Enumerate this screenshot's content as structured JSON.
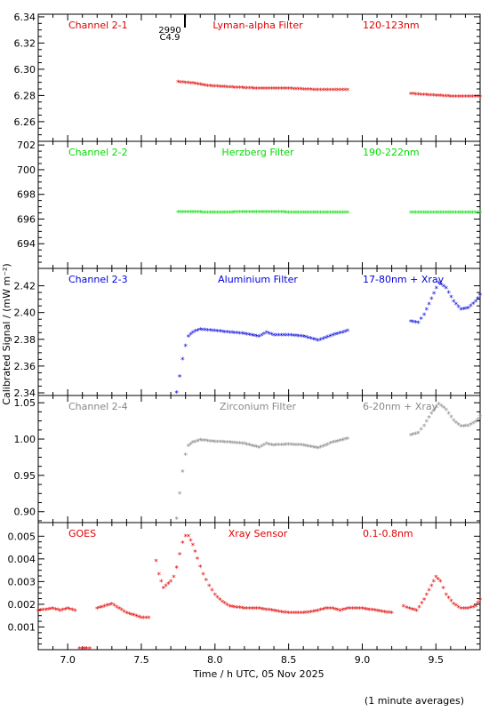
{
  "chart_data": {
    "type": "scatter",
    "xlabel": "Time / h UTC, 05 Nov 2025",
    "ylabel": "Calibrated Signal / (mW m⁻²)",
    "footnote": "(1 minute averages)",
    "marker": {
      "time": 7.82,
      "line1": "2990",
      "line2": "C4.9"
    },
    "xlim": [
      6.8,
      9.8
    ],
    "xticks": [
      7.0,
      7.5,
      8.0,
      8.5,
      9.0,
      9.5
    ],
    "xticklabels": [
      "7.0",
      "7.5",
      "8.0",
      "8.5",
      "9.0",
      "9.5"
    ],
    "panels": [
      {
        "channel": "Channel 2-1",
        "filter": "Lyman-alpha Filter",
        "band": "120-123nm",
        "color": "#e00000",
        "ylim": [
          6.245,
          6.342
        ],
        "yticks": [
          6.26,
          6.28,
          6.3,
          6.32,
          6.34
        ],
        "yticklabels": [
          "6.26",
          "6.28",
          "6.30",
          "6.32",
          "6.34"
        ],
        "segments": [
          {
            "x": [
              7.75,
              7.85,
              7.95,
              8.1,
              8.3,
              8.5,
              8.7,
              8.9
            ],
            "y": [
              6.29,
              6.289,
              6.287,
              6.286,
              6.285,
              6.285,
              6.284,
              6.284
            ]
          },
          {
            "x": [
              9.33,
              9.45,
              9.6,
              9.8
            ],
            "y": [
              6.281,
              6.28,
              6.279,
              6.279
            ]
          }
        ]
      },
      {
        "channel": "Channel 2-2",
        "filter": "Herzberg Filter",
        "band": "190-222nm",
        "color": "#00dd00",
        "ylim": [
          692.0,
          702.3
        ],
        "yticks": [
          694,
          696,
          698,
          700,
          702
        ],
        "yticklabels": [
          "694",
          "696",
          "698",
          "700",
          "702"
        ],
        "segments": [
          {
            "x": [
              7.75,
              8.0,
              8.3,
              8.6,
              8.9
            ],
            "y": [
              696.55,
              696.5,
              696.55,
              696.5,
              696.5
            ]
          },
          {
            "x": [
              9.33,
              9.55,
              9.8
            ],
            "y": [
              696.5,
              696.5,
              696.5
            ]
          }
        ]
      },
      {
        "channel": "Channel 2-3",
        "filter": "Aluminium Filter",
        "band": "17-80nm + Xray",
        "color": "#0000dd",
        "ylim": [
          2.338,
          2.433
        ],
        "yticks": [
          2.34,
          2.36,
          2.38,
          2.4,
          2.42
        ],
        "yticklabels": [
          "2.34",
          "2.36",
          "2.38",
          "2.40",
          "2.42"
        ],
        "segments": [
          {
            "x": [
              7.74,
              7.76,
              7.78,
              7.8,
              7.82,
              7.85,
              7.9,
              8.0,
              8.1,
              8.2,
              8.3,
              8.35,
              8.4,
              8.5,
              8.6,
              8.7,
              8.8,
              8.9
            ],
            "y": [
              2.34,
              2.352,
              2.365,
              2.375,
              2.382,
              2.385,
              2.387,
              2.386,
              2.385,
              2.384,
              2.382,
              2.385,
              2.383,
              2.383,
              2.382,
              2.379,
              2.383,
              2.386
            ]
          },
          {
            "x": [
              9.33,
              9.38,
              9.42,
              9.47,
              9.52,
              9.57,
              9.62,
              9.67,
              9.72,
              9.77,
              9.8
            ],
            "y": [
              2.393,
              2.392,
              2.398,
              2.41,
              2.422,
              2.418,
              2.408,
              2.402,
              2.403,
              2.408,
              2.413
            ]
          }
        ]
      },
      {
        "channel": "Channel 2-4",
        "filter": "Zirconium Filter",
        "band": "6-20nm + Xray",
        "color": "#888888",
        "ylim": [
          0.885,
          1.06
        ],
        "yticks": [
          0.9,
          0.95,
          1.0,
          1.05
        ],
        "yticklabels": [
          "0.90",
          "0.95",
          "1.00",
          "1.05"
        ],
        "segments": [
          {
            "x": [
              7.74,
              7.76,
              7.78,
              7.8,
              7.82,
              7.85,
              7.9,
              8.0,
              8.1,
              8.2,
              8.3,
              8.35,
              8.4,
              8.5,
              8.6,
              8.7,
              8.8,
              8.9
            ],
            "y": [
              0.89,
              0.925,
              0.955,
              0.978,
              0.99,
              0.995,
              0.998,
              0.996,
              0.995,
              0.993,
              0.988,
              0.993,
              0.991,
              0.992,
              0.991,
              0.987,
              0.995,
              1.0
            ]
          },
          {
            "x": [
              9.33,
              9.38,
              9.42,
              9.47,
              9.52,
              9.57,
              9.62,
              9.67,
              9.72,
              9.77,
              9.8
            ],
            "y": [
              1.005,
              1.008,
              1.018,
              1.035,
              1.048,
              1.04,
              1.025,
              1.017,
              1.018,
              1.023,
              1.03
            ]
          }
        ]
      },
      {
        "channel": "GOES",
        "filter": "Xray Sensor",
        "band": "0.1-0.8nm",
        "color": "#e00000",
        "ylim": [
          0.0,
          0.0056
        ],
        "yticks": [
          0.001,
          0.002,
          0.003,
          0.004,
          0.005
        ],
        "yticklabels": [
          "0.001",
          "0.002",
          "0.003",
          "0.004",
          "0.005"
        ],
        "segments": [
          {
            "x": [
              6.8,
              6.9,
              6.95,
              7.0,
              7.05
            ],
            "y": [
              0.0017,
              0.0018,
              0.0017,
              0.0018,
              0.0017
            ]
          },
          {
            "x": [
              7.08,
              7.1,
              7.13,
              7.15
            ],
            "y": [
              3e-05,
              3e-05,
              3e-05,
              3e-05
            ]
          },
          {
            "x": [
              7.2,
              7.25,
              7.3,
              7.35,
              7.4,
              7.45,
              7.5,
              7.55
            ],
            "y": [
              0.0018,
              0.0019,
              0.002,
              0.0018,
              0.0016,
              0.0015,
              0.0014,
              0.0014
            ]
          },
          {
            "x": [
              7.6,
              7.62,
              7.65,
              7.7,
              7.72,
              7.74,
              7.76,
              7.78,
              7.8,
              7.82,
              7.85,
              7.88,
              7.92,
              7.96,
              8.0,
              8.05,
              8.1,
              8.2,
              8.3,
              8.4,
              8.5,
              8.6,
              8.7,
              8.75,
              8.8,
              8.85,
              8.9,
              9.0,
              9.1,
              9.2
            ],
            "y": [
              0.0039,
              0.0033,
              0.0027,
              0.003,
              0.0032,
              0.0036,
              0.0042,
              0.0047,
              0.005,
              0.005,
              0.0046,
              0.004,
              0.0033,
              0.0028,
              0.0024,
              0.0021,
              0.0019,
              0.0018,
              0.0018,
              0.0017,
              0.0016,
              0.0016,
              0.0017,
              0.0018,
              0.0018,
              0.0017,
              0.0018,
              0.0018,
              0.0017,
              0.0016
            ]
          },
          {
            "x": [
              9.28,
              9.32,
              9.37,
              9.42,
              9.47,
              9.5,
              9.53,
              9.57,
              9.62,
              9.67,
              9.72,
              9.77,
              9.8
            ],
            "y": [
              0.0019,
              0.0018,
              0.0017,
              0.0022,
              0.0028,
              0.0032,
              0.003,
              0.0024,
              0.002,
              0.0018,
              0.0018,
              0.0019,
              0.0022
            ]
          }
        ]
      }
    ]
  }
}
